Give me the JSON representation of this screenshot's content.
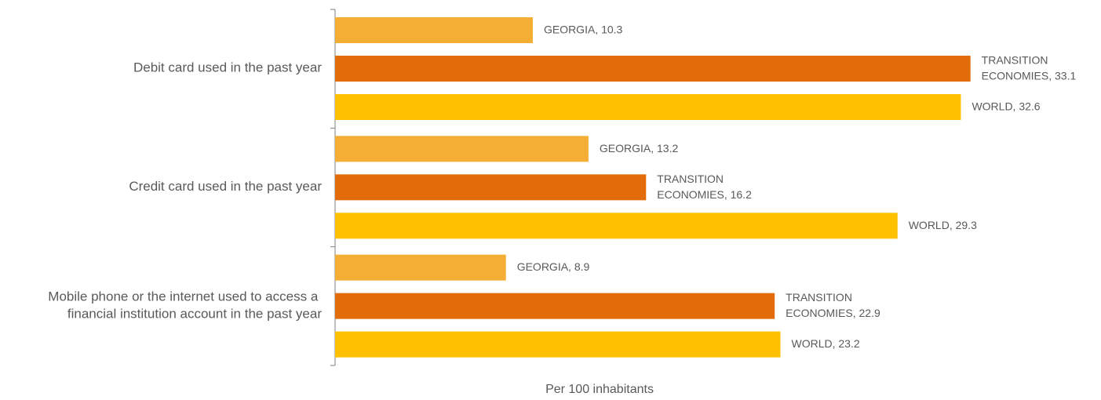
{
  "chart_data": {
    "type": "hbar",
    "categories": [
      "Debit card used in the past year",
      "Credit card used in the past year",
      "Mobile phone or the internet used to access a financial institution account in the past year"
    ],
    "series": [
      {
        "name": "GEORGIA",
        "color": "#f5ae35",
        "values": [
          10.3,
          13.2,
          8.9
        ],
        "value_labels": [
          "GEORGIA, 10.3",
          "GEORGIA, 13.2",
          "GEORGIA, 8.9"
        ]
      },
      {
        "name": "TRANSITION ECONOMIES",
        "color": "#e36c0a",
        "values": [
          33.1,
          16.2,
          22.9
        ],
        "value_labels": [
          "TRANSITION ECONOMIES, 33.1",
          "TRANSITION ECONOMIES, 16.2",
          "TRANSITION ECONOMIES, 22.9"
        ]
      },
      {
        "name": "WORLD",
        "color": "#ffc000",
        "values": [
          32.6,
          29.3,
          23.2
        ],
        "value_labels": [
          "WORLD, 32.6",
          "WORLD, 29.3",
          "WORLD, 23.2"
        ]
      }
    ],
    "xlabel": "Per 100 inhabitants",
    "xlim": [
      0,
      39
    ]
  }
}
